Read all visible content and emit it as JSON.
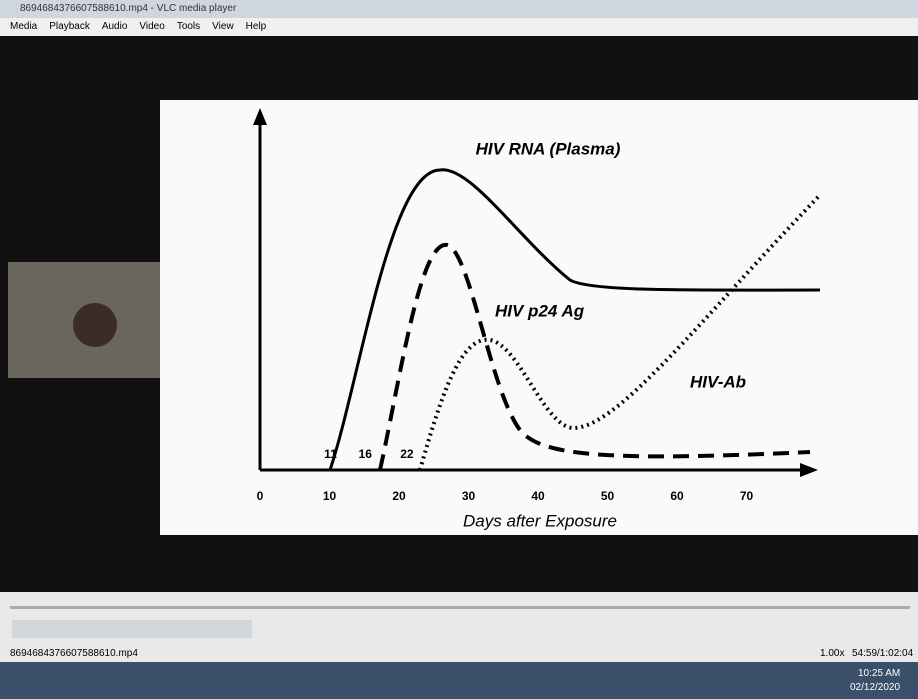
{
  "window": {
    "title": "8694684376607588610.mp4 - VLC media player",
    "menu": [
      "Media",
      "Playback",
      "Audio",
      "Video",
      "Tools",
      "View",
      "Help"
    ]
  },
  "chart_data": {
    "type": "line",
    "x_label": "Days after Exposure",
    "xlim": [
      0,
      80
    ],
    "xticks": [
      0,
      10,
      20,
      30,
      40,
      50,
      60,
      70
    ],
    "markers": [
      11,
      16,
      22
    ],
    "series": [
      {
        "name": "HIV RNA (Plasma)"
      },
      {
        "name": "HIV p24 Ag"
      },
      {
        "name": "HIV-Ab"
      }
    ]
  },
  "player": {
    "filename": "8694684376607588610.mp4",
    "speed": "1.00x",
    "time": "54:59/1:02:04"
  },
  "taskbar": {
    "time": "10:25 AM",
    "date": "02/12/2020"
  }
}
